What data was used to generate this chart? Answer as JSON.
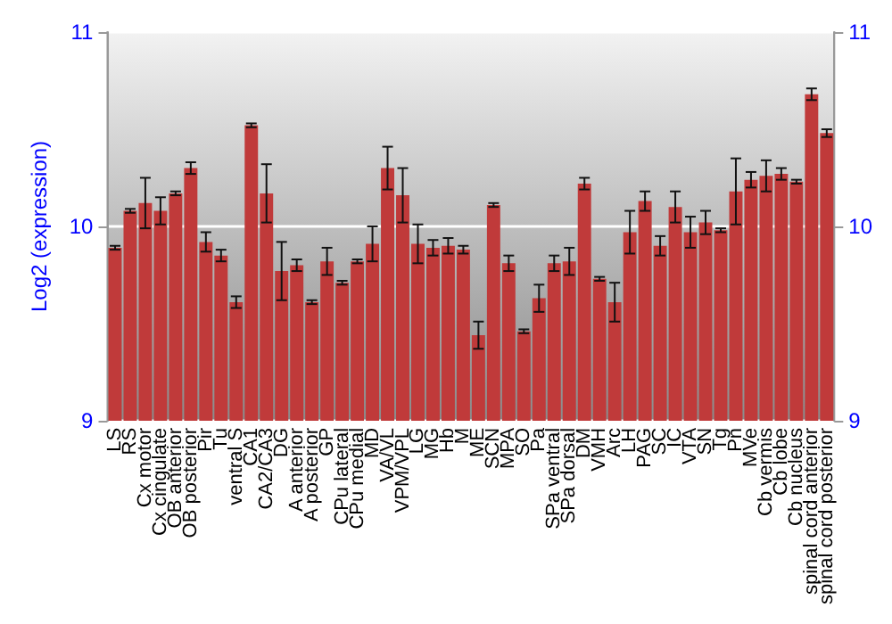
{
  "chart_data": {
    "type": "bar",
    "ylabel": "Log2 (expression)",
    "categories": [
      "LS",
      "RS",
      "Cx motor",
      "Cx cingulate",
      "OB anterior",
      "OB posterior",
      "Pir",
      "Tu",
      "ventral S",
      "CA1",
      "CA2/CA3",
      "DG",
      "A anterior",
      "A posterior",
      "GP",
      "CPu lateral",
      "CPu medial",
      "MD",
      "VA/VL",
      "VPM/VPL",
      "LG",
      "MG",
      "Hb",
      "M",
      "ME",
      "SCN",
      "MPA",
      "SO",
      "Pa",
      "SPa ventral",
      "SPa dorsal",
      "DM",
      "VMH",
      "Arc",
      "LH",
      "PAG",
      "SC",
      "IC",
      "VTA",
      "SN",
      "Tg",
      "Pn",
      "MVe",
      "Cb vermis",
      "Cb lobe",
      "Cb nucleus",
      "spinal cord anterior",
      "spinal cord posterior"
    ],
    "values": [
      9.89,
      10.08,
      10.12,
      10.08,
      10.17,
      10.3,
      9.92,
      9.85,
      9.61,
      10.52,
      10.17,
      9.77,
      9.8,
      9.61,
      9.82,
      9.71,
      9.82,
      9.91,
      10.3,
      10.16,
      9.91,
      9.89,
      9.9,
      9.88,
      9.44,
      10.11,
      9.81,
      9.46,
      9.63,
      9.81,
      9.82,
      10.22,
      9.73,
      9.61,
      9.97,
      10.13,
      9.9,
      10.1,
      9.97,
      10.02,
      9.98,
      10.18,
      10.24,
      10.26,
      10.27,
      10.23,
      10.68,
      10.48
    ],
    "errors": [
      0.01,
      0.01,
      0.13,
      0.07,
      0.01,
      0.03,
      0.05,
      0.03,
      0.03,
      0.01,
      0.15,
      0.15,
      0.03,
      0.01,
      0.07,
      0.01,
      0.01,
      0.09,
      0.11,
      0.14,
      0.1,
      0.04,
      0.04,
      0.02,
      0.07,
      0.01,
      0.04,
      0.01,
      0.07,
      0.04,
      0.07,
      0.03,
      0.01,
      0.1,
      0.11,
      0.05,
      0.05,
      0.08,
      0.08,
      0.06,
      0.01,
      0.17,
      0.04,
      0.08,
      0.03,
      0.01,
      0.03,
      0.02
    ],
    "color": "#c03a3a",
    "ylim": [
      9,
      11
    ],
    "yticks": [
      9,
      10,
      11
    ],
    "y2lim": [
      9,
      11
    ],
    "y2ticks": [
      9,
      10,
      11
    ],
    "grid": "y"
  }
}
